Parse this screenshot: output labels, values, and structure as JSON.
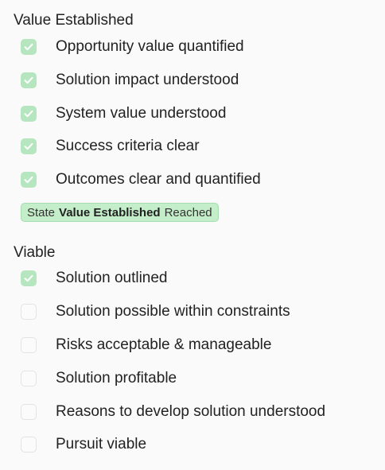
{
  "sections": [
    {
      "title": "Value Established",
      "items": [
        {
          "label": "Opportunity value quantified",
          "checked": true
        },
        {
          "label": "Solution impact understood",
          "checked": true
        },
        {
          "label": "System value understood",
          "checked": true
        },
        {
          "label": "Success criteria clear",
          "checked": true
        },
        {
          "label": "Outcomes clear and quantified",
          "checked": true
        }
      ],
      "badge": {
        "prefix": "State",
        "state": "Value Established",
        "suffix": "Reached"
      }
    },
    {
      "title": "Viable",
      "items": [
        {
          "label": "Solution outlined",
          "checked": true
        },
        {
          "label": "Solution possible within constraints",
          "checked": false
        },
        {
          "label": "Risks acceptable & manageable",
          "checked": false
        },
        {
          "label": "Solution profitable",
          "checked": false
        },
        {
          "label": "Reasons to develop solution understood",
          "checked": false
        },
        {
          "label": "Pursuit viable",
          "checked": false
        }
      ]
    }
  ],
  "colors": {
    "check_fill": "#b6e6bf",
    "check_mark": "#ffffff",
    "badge_bg": "#c4eec9",
    "badge_border": "#a6dcae"
  },
  "icons": {
    "checkmark": "checkmark-icon"
  }
}
